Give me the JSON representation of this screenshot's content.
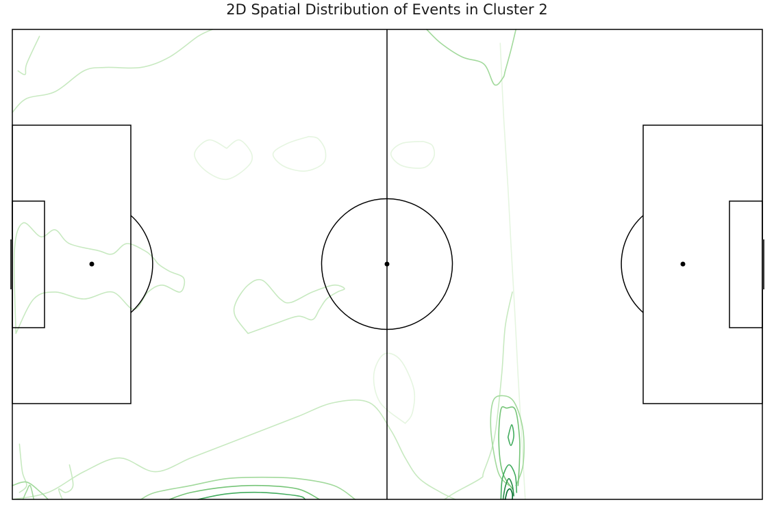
{
  "title": "2D Spatial Distribution of Events in Cluster 2",
  "chart_data": {
    "type": "contour",
    "title": "2D Spatial Distribution of Events in Cluster 2",
    "xlabel": "",
    "ylabel": "",
    "grid": false,
    "legend": "none",
    "pitch": {
      "length": 105,
      "width": 68
    },
    "xlim": [
      0,
      105
    ],
    "ylim": [
      0,
      68
    ],
    "contour_colors": [
      "#e5f5e0",
      "#c7e9c0",
      "#a1d99b",
      "#74c476",
      "#41ab5d",
      "#238b45",
      "#006d2c"
    ],
    "contours": [
      {
        "level": 0,
        "points": [
          [
            68.3,
            66
          ],
          [
            68.8,
            55
          ],
          [
            69.4,
            45
          ],
          [
            69.8,
            37
          ],
          [
            70.3,
            28
          ],
          [
            70.8,
            18
          ],
          [
            71.3,
            9
          ],
          [
            71.8,
            0
          ]
        ]
      },
      {
        "level": 0,
        "points": [
          [
            55,
            11
          ],
          [
            51.5,
            14
          ],
          [
            50.6,
            18
          ],
          [
            52,
            21
          ],
          [
            54.3,
            20.2
          ],
          [
            56.2,
            16
          ],
          [
            56,
            12.5
          ],
          [
            55,
            11
          ]
        ]
      },
      {
        "level": 0,
        "points": [
          [
            30,
            50.8
          ],
          [
            27.5,
            52
          ],
          [
            25.5,
            50
          ],
          [
            27,
            47.6
          ],
          [
            30,
            46.3
          ],
          [
            33,
            48.2
          ],
          [
            33.5,
            50
          ],
          [
            31.8,
            52
          ],
          [
            30,
            50.8
          ]
        ]
      },
      {
        "level": 0,
        "points": [
          [
            41.5,
            52.5
          ],
          [
            38.5,
            51.5
          ],
          [
            36.5,
            50
          ],
          [
            38,
            48.2
          ],
          [
            41,
            47.5
          ],
          [
            43.5,
            48.6
          ],
          [
            43.8,
            50.5
          ],
          [
            42.8,
            52.2
          ],
          [
            41.5,
            52.5
          ]
        ]
      },
      {
        "level": 0,
        "points": [
          [
            57.5,
            51.8
          ],
          [
            54.5,
            51.5
          ],
          [
            53,
            50
          ],
          [
            54.5,
            48.3
          ],
          [
            57.6,
            48
          ],
          [
            59,
            49.5
          ],
          [
            58.8,
            51.2
          ],
          [
            57.5,
            51.8
          ]
        ]
      },
      {
        "level": 1,
        "points": [
          [
            0,
            0
          ],
          [
            5,
            1
          ],
          [
            10,
            4
          ],
          [
            15,
            6
          ],
          [
            20,
            4
          ],
          [
            25,
            6
          ],
          [
            30,
            8
          ],
          [
            35,
            10
          ],
          [
            40,
            12
          ],
          [
            45,
            14
          ],
          [
            50,
            14
          ],
          [
            53,
            10
          ],
          [
            55,
            6
          ],
          [
            57,
            3
          ],
          [
            60,
            1
          ],
          [
            62,
            0
          ]
        ]
      },
      {
        "level": 1,
        "points": [
          [
            0.5,
            24
          ],
          [
            3,
            29
          ],
          [
            6,
            30
          ],
          [
            10,
            29
          ],
          [
            14,
            30
          ],
          [
            17,
            27.5
          ],
          [
            19,
            30
          ],
          [
            21,
            31
          ],
          [
            23.5,
            30
          ],
          [
            24,
            32
          ],
          [
            22,
            33
          ],
          [
            20.5,
            34
          ],
          [
            19.7,
            35
          ],
          [
            18.5,
            36
          ],
          [
            16,
            37
          ],
          [
            14,
            35.5
          ],
          [
            12,
            36
          ],
          [
            8,
            37
          ],
          [
            6,
            39
          ],
          [
            4,
            38
          ],
          [
            1.5,
            40
          ],
          [
            0.3,
            36
          ],
          [
            0.5,
            24
          ]
        ]
      },
      {
        "level": 1,
        "points": [
          [
            0,
            56
          ],
          [
            2,
            58
          ],
          [
            6,
            59
          ],
          [
            10,
            62
          ],
          [
            13,
            62.5
          ],
          [
            18,
            62.5
          ],
          [
            22,
            64
          ],
          [
            26,
            67
          ],
          [
            28,
            68
          ]
        ]
      },
      {
        "level": 1,
        "points": [
          [
            33,
            24
          ],
          [
            31.2,
            26.5
          ],
          [
            31.3,
            28.5
          ],
          [
            33,
            31
          ],
          [
            35,
            31.7
          ],
          [
            37.5,
            29
          ],
          [
            39,
            28.5
          ],
          [
            42,
            30
          ],
          [
            45,
            31
          ],
          [
            46.5,
            30.5
          ],
          [
            45.5,
            30
          ],
          [
            44,
            29
          ],
          [
            43,
            27.5
          ],
          [
            42,
            26
          ],
          [
            40,
            26.5
          ],
          [
            37,
            25.5
          ],
          [
            33,
            24
          ]
        ]
      },
      {
        "level": 1,
        "points": [
          [
            3.8,
            67
          ],
          [
            2,
            63
          ],
          [
            1.8,
            61.5
          ],
          [
            0.8,
            62
          ]
        ]
      },
      {
        "level": 1,
        "points": [
          [
            70,
            30
          ],
          [
            69,
            25
          ],
          [
            68.5,
            18
          ],
          [
            67.5,
            9
          ],
          [
            66,
            4
          ],
          [
            65.5,
            3
          ],
          [
            62,
            1
          ],
          [
            60.5,
            0
          ]
        ]
      },
      {
        "level": 1,
        "points": [
          [
            8,
            5
          ],
          [
            8.5,
            2
          ],
          [
            7.5,
            1
          ],
          [
            6.5,
            1.5
          ],
          [
            7,
            0
          ]
        ]
      },
      {
        "level": 1,
        "points": [
          [
            1,
            8
          ],
          [
            1.4,
            4
          ],
          [
            2,
            2
          ],
          [
            1,
            1
          ]
        ]
      },
      {
        "level": 2,
        "points": [
          [
            0,
            2
          ],
          [
            2,
            2.5
          ],
          [
            4,
            1
          ],
          [
            5,
            0
          ]
        ]
      },
      {
        "level": 2,
        "points": [
          [
            18,
            0
          ],
          [
            20,
            1
          ],
          [
            25,
            2
          ],
          [
            30,
            3
          ],
          [
            35,
            3.2
          ],
          [
            40,
            3
          ],
          [
            45,
            2
          ],
          [
            48,
            0
          ]
        ]
      },
      {
        "level": 2,
        "points": [
          [
            58,
            68
          ],
          [
            60,
            66
          ],
          [
            63,
            64
          ],
          [
            66,
            63
          ],
          [
            67.5,
            60
          ],
          [
            68.7,
            61
          ],
          [
            69,
            62
          ],
          [
            69.8,
            65
          ],
          [
            70.5,
            68
          ]
        ]
      },
      {
        "level": 2,
        "points": [
          [
            69.5,
            2
          ],
          [
            68,
            4
          ],
          [
            67,
            10
          ],
          [
            67.3,
            14.2
          ],
          [
            68.7,
            15
          ],
          [
            70.3,
            14
          ],
          [
            71.5,
            10
          ],
          [
            71.5,
            5
          ],
          [
            70.5,
            2
          ]
        ]
      },
      {
        "level": 2,
        "points": [
          [
            1.5,
            0
          ],
          [
            2,
            1.2
          ],
          [
            2.5,
            2
          ],
          [
            3,
            0
          ]
        ]
      },
      {
        "level": 3,
        "points": [
          [
            22,
            0
          ],
          [
            25,
            1
          ],
          [
            30,
            1.8
          ],
          [
            35,
            2
          ],
          [
            40,
            1.5
          ],
          [
            43,
            0
          ]
        ]
      },
      {
        "level": 3,
        "points": [
          [
            70,
            1.5
          ],
          [
            68.6,
            4
          ],
          [
            68.1,
            8.5
          ],
          [
            68.4,
            13
          ],
          [
            69.2,
            13.2
          ],
          [
            70.4,
            13
          ],
          [
            71,
            9
          ],
          [
            71,
            5.5
          ],
          [
            70.8,
            2
          ]
        ]
      },
      {
        "level": 4,
        "points": [
          [
            26,
            0
          ],
          [
            30,
            0.8
          ],
          [
            35,
            1
          ],
          [
            40,
            0.5
          ],
          [
            41,
            0
          ]
        ]
      },
      {
        "level": 4,
        "points": [
          [
            68.4,
            0
          ],
          [
            68.6,
            3
          ],
          [
            69.5,
            5
          ],
          [
            70.4,
            3.5
          ],
          [
            70.6,
            1
          ]
        ]
      },
      {
        "level": 4,
        "points": [
          [
            69.4,
            9
          ],
          [
            69.9,
            10.8
          ],
          [
            70.2,
            9.2
          ],
          [
            69.8,
            7.8
          ],
          [
            69.4,
            9
          ]
        ]
      },
      {
        "level": 5,
        "points": [
          [
            68.7,
            0
          ],
          [
            69,
            1.8
          ],
          [
            69.5,
            3
          ],
          [
            70,
            2
          ],
          [
            70.2,
            0.5
          ]
        ]
      },
      {
        "level": 6,
        "points": [
          [
            69,
            0
          ],
          [
            69.3,
            1.2
          ],
          [
            69.7,
            1.5
          ],
          [
            70,
            0.8
          ],
          [
            70,
            0
          ]
        ]
      }
    ]
  }
}
